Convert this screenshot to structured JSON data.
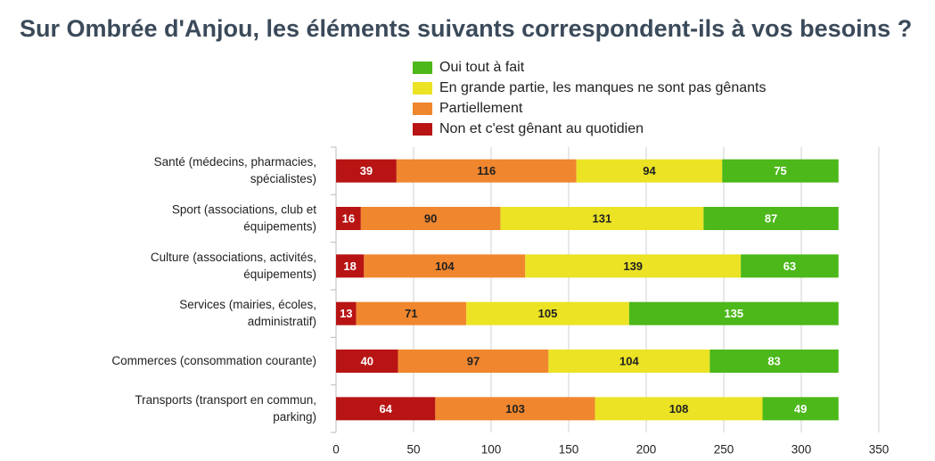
{
  "chart_data": {
    "type": "stacked_bar_horizontal",
    "title": "Sur Ombrée d'Anjou, les éléments suivants correspondent-ils à vos besoins ?",
    "categories": [
      "Santé (médecins, pharmacies, spécialistes)",
      "Sport (associations, club et équipements)",
      "Culture (associations, activités, équipements)",
      "Services (mairies, écoles, administratif)",
      "Commerces (consommation courante)",
      "Transports (transport en commun, parking)"
    ],
    "series": [
      {
        "name": "Oui tout à fait",
        "color": "#4cb81a",
        "label_color": "#ffffff",
        "values": [
          75,
          87,
          63,
          135,
          83,
          49
        ]
      },
      {
        "name": "En grande partie, les manques ne sont pas gênants",
        "color": "#ebe324",
        "label_color": "#222222",
        "values": [
          94,
          131,
          139,
          105,
          104,
          108
        ]
      },
      {
        "name": "Partiellement",
        "color": "#f0862e",
        "label_color": "#222222",
        "values": [
          116,
          90,
          104,
          71,
          97,
          103
        ]
      },
      {
        "name": "Non et c'est gênant au quotidien",
        "color": "#b81414",
        "label_color": "#ffffff",
        "values": [
          39,
          16,
          18,
          13,
          40,
          64
        ]
      }
    ],
    "xlim": [
      0,
      350
    ],
    "xticks": [
      0,
      50,
      100,
      150,
      200,
      250,
      300,
      350
    ],
    "grid": true
  }
}
